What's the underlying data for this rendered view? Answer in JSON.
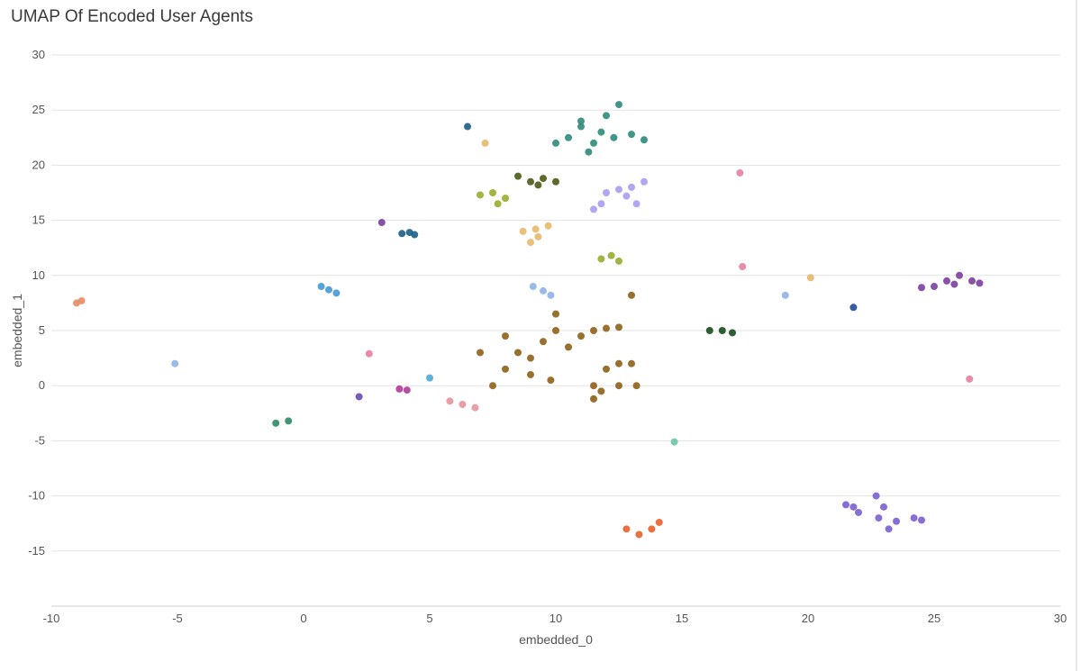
{
  "chart_data": {
    "type": "scatter",
    "title": "UMAP Of Encoded User Agents",
    "xlabel": "embedded_0",
    "ylabel": "embedded_1",
    "xlim": [
      -10,
      30
    ],
    "ylim": [
      -20,
      30
    ],
    "x_ticks": [
      -10,
      -5,
      0,
      5,
      10,
      15,
      20,
      25,
      30
    ],
    "y_ticks": [
      -15,
      -10,
      -5,
      0,
      5,
      10,
      15,
      20,
      25,
      30
    ],
    "grid": "horizontal",
    "legend": "none",
    "series": [
      {
        "color": "#2e8b7a",
        "points": [
          [
            10.5,
            22.5
          ],
          [
            11.0,
            23.5
          ],
          [
            11.5,
            22.0
          ],
          [
            12.0,
            24.5
          ],
          [
            12.5,
            25.5
          ],
          [
            11.8,
            23.0
          ],
          [
            13.0,
            22.8
          ],
          [
            13.5,
            22.3
          ],
          [
            10.0,
            22.0
          ],
          [
            11.3,
            21.2
          ],
          [
            12.3,
            22.5
          ],
          [
            11.0,
            24.0
          ]
        ]
      },
      {
        "color": "#4a5a14",
        "points": [
          [
            8.5,
            19.0
          ],
          [
            9.0,
            18.5
          ],
          [
            9.5,
            18.8
          ],
          [
            10.0,
            18.5
          ],
          [
            9.3,
            18.2
          ]
        ]
      },
      {
        "color": "#a99cf0",
        "points": [
          [
            11.5,
            16.0
          ],
          [
            12.0,
            17.5
          ],
          [
            12.5,
            17.8
          ],
          [
            13.0,
            18.0
          ],
          [
            13.5,
            18.5
          ],
          [
            13.2,
            16.5
          ],
          [
            12.8,
            17.2
          ],
          [
            11.8,
            16.5
          ]
        ]
      },
      {
        "color": "#9aac2e",
        "points": [
          [
            7.0,
            17.3
          ],
          [
            7.5,
            17.5
          ],
          [
            8.0,
            17.0
          ],
          [
            7.7,
            16.5
          ]
        ]
      },
      {
        "color": "#e8b86a",
        "points": [
          [
            8.7,
            14.0
          ],
          [
            9.2,
            14.2
          ],
          [
            9.7,
            14.5
          ],
          [
            9.3,
            13.5
          ],
          [
            9.0,
            13.0
          ]
        ]
      },
      {
        "color": "#9aac2e",
        "points": [
          [
            11.8,
            11.5
          ],
          [
            12.2,
            11.8
          ],
          [
            12.5,
            11.3
          ]
        ]
      },
      {
        "color": "#1a5f8a",
        "points": [
          [
            6.5,
            23.5
          ],
          [
            3.9,
            13.8
          ],
          [
            4.2,
            13.9
          ],
          [
            4.4,
            13.7
          ]
        ]
      },
      {
        "color": "#e8b86a",
        "points": [
          [
            7.2,
            22.0
          ],
          [
            20.1,
            9.8
          ]
        ]
      },
      {
        "color": "#7a3fa0",
        "points": [
          [
            3.1,
            14.8
          ],
          [
            25.0,
            9.0
          ],
          [
            25.5,
            9.5
          ],
          [
            26.0,
            10.0
          ],
          [
            26.5,
            9.5
          ],
          [
            26.8,
            9.3
          ],
          [
            25.8,
            9.2
          ],
          [
            24.5,
            8.9
          ]
        ]
      },
      {
        "color": "#e57fa0",
        "points": [
          [
            17.3,
            19.3
          ],
          [
            17.4,
            10.8
          ],
          [
            2.6,
            2.9
          ],
          [
            26.4,
            0.6
          ]
        ]
      },
      {
        "color": "#8f6018",
        "points": [
          [
            8.0,
            4.5
          ],
          [
            8.5,
            3.0
          ],
          [
            9.0,
            2.5
          ],
          [
            9.5,
            4.0
          ],
          [
            10.0,
            5.0
          ],
          [
            10.5,
            3.5
          ],
          [
            11.0,
            4.5
          ],
          [
            11.5,
            5.0
          ],
          [
            12.0,
            5.2
          ],
          [
            12.5,
            5.3
          ],
          [
            7.0,
            3.0
          ],
          [
            8.0,
            1.5
          ],
          [
            9.0,
            1.0
          ],
          [
            9.8,
            0.5
          ],
          [
            11.5,
            0.0
          ],
          [
            12.0,
            1.5
          ],
          [
            12.5,
            2.0
          ],
          [
            13.0,
            2.0
          ],
          [
            11.8,
            -0.5
          ],
          [
            11.5,
            -1.2
          ],
          [
            12.5,
            0.0
          ],
          [
            13.2,
            0.0
          ],
          [
            7.5,
            0.0
          ],
          [
            10.0,
            6.5
          ],
          [
            13.0,
            8.2
          ]
        ]
      },
      {
        "color": "#4499d8",
        "points": [
          [
            0.7,
            9.0
          ],
          [
            1.0,
            8.7
          ],
          [
            1.3,
            8.4
          ]
        ]
      },
      {
        "color": "#8fb4e8",
        "points": [
          [
            9.1,
            9.0
          ],
          [
            9.5,
            8.6
          ],
          [
            9.8,
            8.2
          ],
          [
            -5.1,
            2.0
          ],
          [
            19.1,
            8.2
          ]
        ]
      },
      {
        "color": "#e88b66",
        "points": [
          [
            -9.0,
            7.5
          ],
          [
            -8.8,
            7.7
          ]
        ]
      },
      {
        "color": "#174c1e",
        "points": [
          [
            16.1,
            5.0
          ],
          [
            16.6,
            5.0
          ],
          [
            17.0,
            4.8
          ]
        ]
      },
      {
        "color": "#1f4a9a",
        "points": [
          [
            21.8,
            7.1
          ]
        ]
      },
      {
        "color": "#4aaad8",
        "points": [
          [
            5.0,
            0.7
          ]
        ]
      },
      {
        "color": "#b03a9a",
        "points": [
          [
            3.8,
            -0.3
          ],
          [
            4.1,
            -0.4
          ]
        ]
      },
      {
        "color": "#6a4ab0",
        "points": [
          [
            2.2,
            -1.0
          ]
        ]
      },
      {
        "color": "#2e8b66",
        "points": [
          [
            -1.1,
            -3.4
          ],
          [
            -0.6,
            -3.2
          ]
        ]
      },
      {
        "color": "#e8949c",
        "points": [
          [
            5.8,
            -1.4
          ],
          [
            6.3,
            -1.7
          ],
          [
            6.8,
            -2.0
          ]
        ]
      },
      {
        "color": "#66c8a0",
        "points": [
          [
            14.7,
            -5.1
          ]
        ]
      },
      {
        "color": "#e8602a",
        "points": [
          [
            12.8,
            -13.0
          ],
          [
            13.3,
            -13.5
          ],
          [
            13.8,
            -13.0
          ],
          [
            14.1,
            -12.4
          ]
        ]
      },
      {
        "color": "#7a5fd0",
        "points": [
          [
            21.5,
            -10.8
          ],
          [
            22.0,
            -11.5
          ],
          [
            22.8,
            -12.0
          ],
          [
            23.5,
            -12.3
          ],
          [
            24.2,
            -12.0
          ],
          [
            24.5,
            -12.2
          ],
          [
            23.0,
            -11.0
          ],
          [
            22.7,
            -10.0
          ],
          [
            23.2,
            -13.0
          ],
          [
            21.8,
            -11.0
          ]
        ]
      }
    ]
  }
}
